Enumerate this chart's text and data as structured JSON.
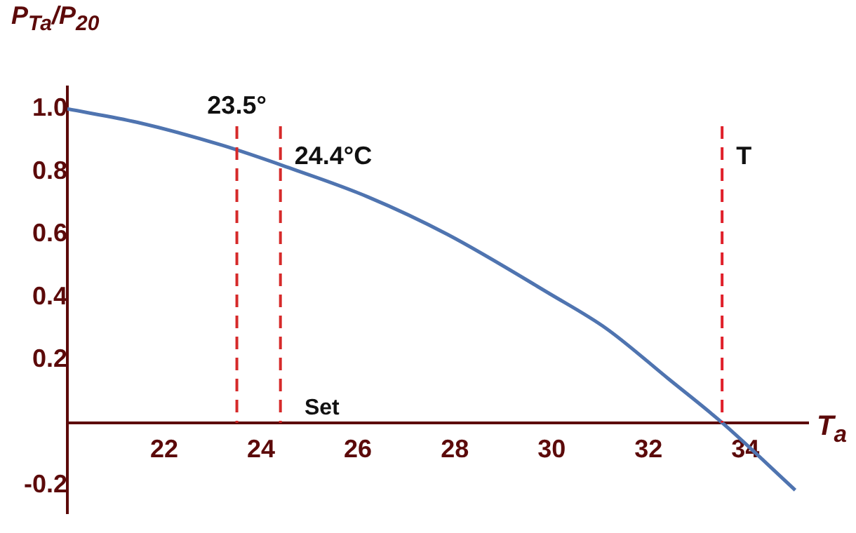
{
  "chart_data": {
    "type": "line",
    "ylabel": "P$_{Ta}$/P$_{20}$",
    "xlabel": "T$_{a}$",
    "x": [
      20,
      21.45,
      23.2,
      24.53,
      26.2,
      27.85,
      29.97,
      31.13,
      32.41,
      33.52,
      35.03
    ],
    "series": [
      {
        "color": "#4f74b0",
        "values": [
          1.0,
          0.957,
          0.884,
          0.815,
          0.72,
          0.6,
          0.41,
          0.3,
          0.14,
          0.0,
          -0.215
        ]
      }
    ],
    "xlim": [
      20,
      35.3
    ],
    "xticks": [
      22,
      24,
      26,
      28,
      30,
      32,
      34
    ],
    "ylim": [
      -0.29,
      1.07
    ],
    "yticks": [
      -0.2,
      0.2,
      0.4,
      0.6,
      {
        "value": 0.8,
        "label": "0.8"
      },
      {
        "value": 1,
        "label": "1.0"
      }
    ],
    "ref_lines": [
      {
        "axis": "x",
        "value": 23.5,
        "label": "23.5°",
        "color": "#d62a2a",
        "line_style": "dashed"
      },
      {
        "axis": "x",
        "value": 24.4,
        "label": "24.4°C",
        "color": "#d62a2a",
        "line_style": "dashed"
      },
      {
        "axis": "x",
        "value": 33.52,
        "label": "T",
        "color": "#e0202a",
        "line_style": "dashed"
      }
    ],
    "annotations": [
      "Set"
    ],
    "grid": false,
    "legend": false,
    "marker": "none",
    "line_style": "solid"
  }
}
